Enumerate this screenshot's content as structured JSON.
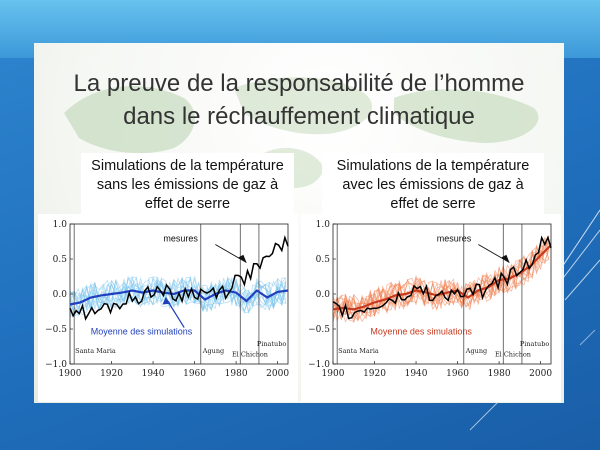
{
  "slide": {
    "title_line1": "La preuve de la responsabilité de l’homme",
    "title_line2": "dans le réchauffement climatique"
  },
  "captions": {
    "left": [
      "Simulations de la température",
      "sans les émissions de gaz à",
      "effet de serre"
    ],
    "right": [
      "Simulations de la température",
      "avec les émissions de gaz à",
      "effet de serre"
    ]
  },
  "colors": {
    "background": "#1f6fbd",
    "observations": "#000000",
    "natural_mean": "#1f3fbf",
    "natural_runs": "#7cc4ec",
    "anthro_mean": "#c8391d",
    "anthro_runs": "#f08050"
  },
  "chart_data": [
    {
      "type": "line",
      "title": "",
      "xlabel": "",
      "ylabel": "",
      "xlim": [
        1900,
        2005
      ],
      "ylim": [
        -1.0,
        1.0
      ],
      "x_ticks": [
        "1900",
        "1920",
        "1940",
        "1960",
        "1980",
        "2000"
      ],
      "y_ticks": [
        "1.0",
        "0.5",
        "0.0",
        "−0.5",
        "−1.0"
      ],
      "volcanic_events": [
        {
          "name": "Santa Maria",
          "year": 1902
        },
        {
          "name": "Agung",
          "year": 1963
        },
        {
          "name": "El Chichon",
          "year": 1982
        },
        {
          "name": "Pinatubo",
          "year": 1991
        }
      ],
      "annotations": {
        "observations": "mesures",
        "mean": "Moyenne des simulations"
      },
      "x": [
        1900,
        1905,
        1910,
        1915,
        1920,
        1925,
        1930,
        1935,
        1940,
        1945,
        1950,
        1955,
        1960,
        1965,
        1970,
        1975,
        1980,
        1985,
        1990,
        1995,
        2000,
        2005
      ],
      "series": [
        {
          "name": "mesures",
          "values": [
            -0.2,
            -0.25,
            -0.3,
            -0.22,
            -0.18,
            -0.12,
            -0.08,
            -0.02,
            0.08,
            0.05,
            -0.05,
            0.0,
            0.03,
            0.0,
            0.05,
            0.05,
            0.2,
            0.25,
            0.38,
            0.45,
            0.7,
            0.75
          ]
        },
        {
          "name": "Moyenne des simulations",
          "values": [
            -0.15,
            -0.12,
            -0.05,
            -0.02,
            0.0,
            0.02,
            0.05,
            0.02,
            0.05,
            0.02,
            0.0,
            0.05,
            0.05,
            -0.08,
            0.0,
            0.05,
            0.02,
            -0.1,
            0.05,
            -0.05,
            0.03,
            0.05
          ]
        }
      ]
    },
    {
      "type": "line",
      "title": "",
      "xlabel": "",
      "ylabel": "",
      "xlim": [
        1900,
        2005
      ],
      "ylim": [
        -1.0,
        1.0
      ],
      "x_ticks": [
        "1900",
        "1920",
        "1940",
        "1960",
        "1980",
        "2000"
      ],
      "y_ticks": [
        "1.0",
        "0.5",
        "0.0",
        "−0.5",
        "−1.0"
      ],
      "volcanic_events": [
        {
          "name": "Santa Maria",
          "year": 1902
        },
        {
          "name": "Agung",
          "year": 1963
        },
        {
          "name": "El Chichon",
          "year": 1982
        },
        {
          "name": "Pinatubo",
          "year": 1991
        }
      ],
      "annotations": {
        "observations": "mesures",
        "mean": "Moyenne des simulations"
      },
      "x": [
        1900,
        1905,
        1910,
        1915,
        1920,
        1925,
        1930,
        1935,
        1940,
        1945,
        1950,
        1955,
        1960,
        1965,
        1970,
        1975,
        1980,
        1985,
        1990,
        1995,
        2000,
        2005
      ],
      "series": [
        {
          "name": "mesures",
          "values": [
            -0.2,
            -0.25,
            -0.3,
            -0.22,
            -0.18,
            -0.12,
            -0.08,
            -0.02,
            0.08,
            0.05,
            -0.05,
            0.0,
            0.03,
            0.0,
            0.05,
            0.05,
            0.2,
            0.25,
            0.38,
            0.45,
            0.7,
            0.75
          ]
        },
        {
          "name": "Moyenne des simulations",
          "values": [
            -0.22,
            -0.2,
            -0.22,
            -0.18,
            -0.12,
            -0.08,
            -0.02,
            0.0,
            0.05,
            0.02,
            -0.02,
            0.02,
            0.05,
            -0.05,
            0.05,
            0.1,
            0.2,
            0.22,
            0.3,
            0.4,
            0.55,
            0.7
          ]
        }
      ]
    }
  ]
}
